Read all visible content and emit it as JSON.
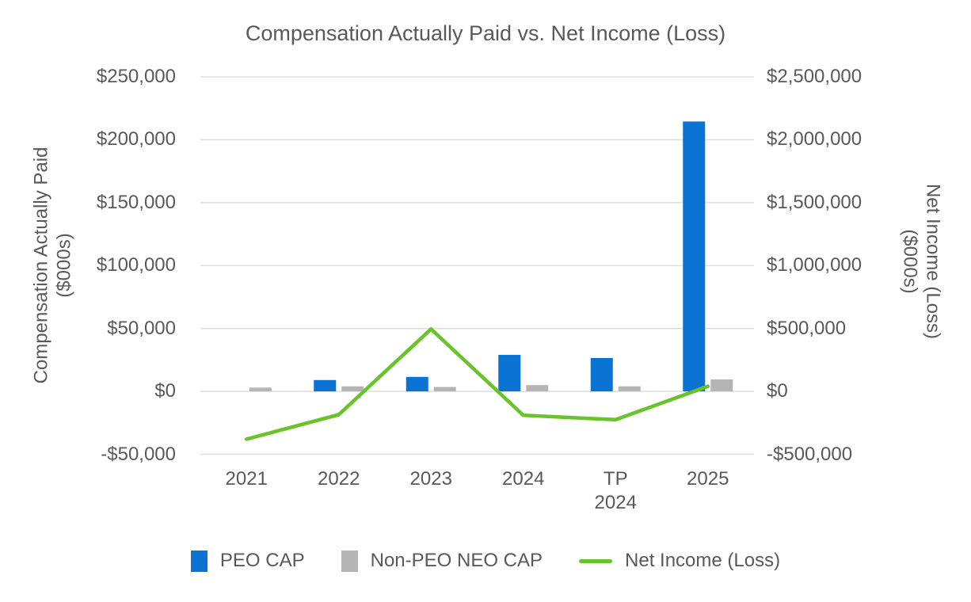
{
  "chart_data": {
    "type": "combo-bar-line",
    "title": "Compensation Actually Paid vs. Net Income (Loss)",
    "categories": [
      "2021",
      "2022",
      "2023",
      "2024",
      "TP 2024",
      "2025"
    ],
    "series": [
      {
        "name": "PEO CAP",
        "type": "bar",
        "axis": "left",
        "color": "#0a73d4",
        "values": [
          0,
          9000,
          11500,
          29000,
          26500,
          214500
        ]
      },
      {
        "name": "Non-PEO NEO CAP",
        "type": "bar",
        "axis": "left",
        "color": "#b5b5b5",
        "values": [
          3000,
          4000,
          3500,
          5000,
          4000,
          9500
        ]
      },
      {
        "name": "Net Income (Loss)",
        "type": "line",
        "axis": "right",
        "color": "#69c42c",
        "values": [
          -380000,
          -185000,
          495000,
          -190000,
          -225000,
          40000
        ]
      }
    ],
    "left_axis": {
      "title": "Compensation Actually Paid\n($000s)",
      "min": -50000,
      "max": 250000,
      "step": 50000,
      "tick_labels": [
        "$250,000",
        "$200,000",
        "$150,000",
        "$100,000",
        "$50,000",
        "$0",
        "-$50,000"
      ]
    },
    "right_axis": {
      "title": "Net Income (Loss)\n($000s)",
      "min": -500000,
      "max": 2500000,
      "step": 500000,
      "tick_labels": [
        "$2,500,000",
        "$2,000,000",
        "$1,500,000",
        "$1,000,000",
        "$500,000",
        "$0",
        "-$500,000"
      ]
    },
    "legend": [
      {
        "label": "PEO CAP",
        "swatch": "square",
        "color": "#0a73d4"
      },
      {
        "label": "Non-PEO NEO CAP",
        "swatch": "square",
        "color": "#b5b5b5"
      },
      {
        "label": "Net Income (Loss)",
        "swatch": "line",
        "color": "#69c42c"
      }
    ],
    "grid": true,
    "legend_position": "bottom",
    "colors": {
      "text": "#595959",
      "gridline": "#dadada",
      "background": "#ffffff"
    }
  }
}
